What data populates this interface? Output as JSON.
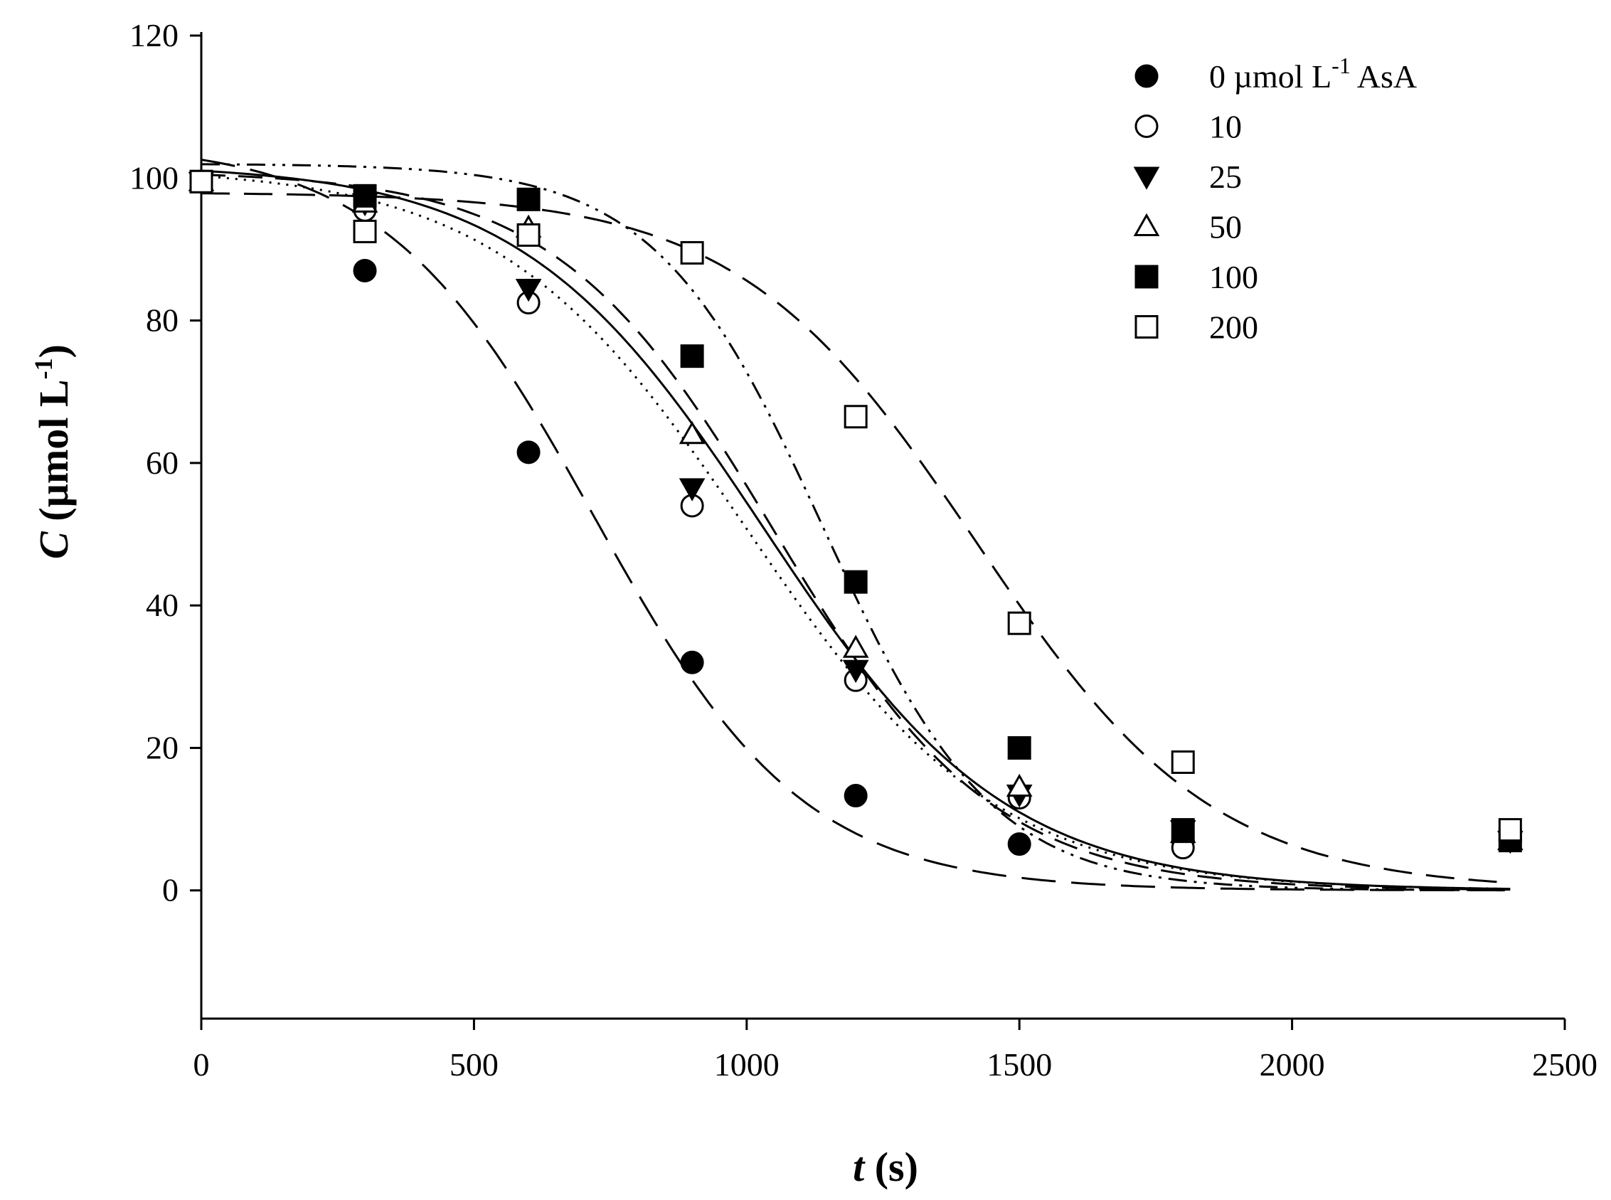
{
  "chart_data": {
    "type": "scatter",
    "title": "",
    "xlabel": {
      "var": "t",
      "unit": " (s)"
    },
    "ylabel": {
      "var": "C",
      "pre": " (µmol L",
      "sup": "-1",
      "post": ")"
    },
    "xlim": [
      0,
      2500
    ],
    "ylim": [
      -18,
      120
    ],
    "xticks": [
      0,
      500,
      1000,
      1500,
      2000,
      2500
    ],
    "yticks": [
      0,
      20,
      40,
      60,
      80,
      100,
      120
    ],
    "grid": false,
    "legend_position": "top-right",
    "legend_first": {
      "pre": "0 µmol L",
      "sup": "-1",
      "post": " AsA"
    },
    "x": [
      0,
      300,
      600,
      900,
      1200,
      1500,
      1800,
      2400
    ],
    "series": [
      {
        "name": "0 µmol L-1 AsA",
        "label": "0",
        "marker": "circle-filled",
        "line": "long-dash",
        "values": [
          99.5,
          87,
          61.5,
          32,
          13.3,
          6.5,
          7,
          7
        ],
        "fit": {
          "x0": 720,
          "k": 0.0052,
          "A": 105,
          "c": 0
        }
      },
      {
        "name": "10",
        "label": "10",
        "marker": "circle-open",
        "line": "dotted",
        "values": [
          99.5,
          95.5,
          82.5,
          54,
          29.5,
          13,
          6,
          7
        ],
        "fit": {
          "x0": 1000,
          "k": 0.0044,
          "A": 101.5,
          "c": 0
        }
      },
      {
        "name": "25",
        "label": "25",
        "marker": "triangle-down-filled",
        "line": "solid",
        "values": [
          99.5,
          96.5,
          84.5,
          56.5,
          31,
          13.5,
          8.5,
          7
        ],
        "fit": {
          "x0": 1030,
          "k": 0.0045,
          "A": 102,
          "c": 0
        }
      },
      {
        "name": "50",
        "label": "50",
        "marker": "triangle-up-open",
        "line": "dash",
        "values": [
          99.5,
          96.5,
          93,
          64,
          34,
          14.5,
          8,
          7
        ],
        "fit": {
          "x0": 1050,
          "k": 0.005,
          "A": 101,
          "c": 0
        }
      },
      {
        "name": "100",
        "label": "100",
        "marker": "square-filled",
        "line": "dash-dot-dot",
        "values": [
          99.5,
          97.5,
          97,
          75,
          43.3,
          20,
          8.5,
          7
        ],
        "fit": {
          "x0": 1140,
          "k": 0.0065,
          "A": 102,
          "c": 0
        }
      },
      {
        "name": "200",
        "label": "200",
        "marker": "square-open",
        "line": "medium-dash",
        "values": [
          99.5,
          92.5,
          92,
          89.5,
          66.5,
          37.5,
          18,
          8.5
        ],
        "fit": {
          "x0": 1420,
          "k": 0.0046,
          "A": 98,
          "c": 0
        }
      }
    ]
  }
}
